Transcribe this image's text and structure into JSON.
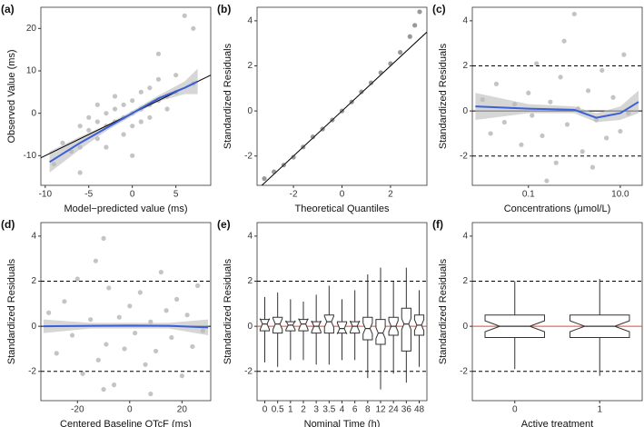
{
  "chart_data": [
    {
      "type": "scatter",
      "title": "(a)",
      "xlabel": "Model−predicted value (ms)",
      "ylabel": "Observed Value (ms)",
      "xlim": [
        -10.5,
        9
      ],
      "ylim": [
        -17,
        25
      ],
      "xticks": [
        -10,
        -5,
        0,
        5
      ],
      "yticks": [
        -10,
        0,
        10,
        20
      ],
      "series": [
        {
          "type": "scatter",
          "color": "#555555",
          "alpha": 0.35,
          "x": [
            -9,
            -8,
            -7,
            -6,
            -6,
            -5,
            -5,
            -4,
            -4,
            -4,
            -3,
            -3,
            -3,
            -2,
            -2,
            -2,
            -1,
            -1,
            -1,
            0,
            0,
            0,
            1,
            1,
            1,
            2,
            2,
            2,
            3,
            3,
            4,
            4,
            5,
            5,
            6,
            7,
            7,
            3,
            -6,
            0
          ],
          "values": [
            -12,
            -7,
            -9,
            -3,
            -8,
            -4,
            -1,
            -6,
            -2,
            2,
            -3,
            0,
            -8,
            -2,
            1,
            4,
            -1,
            2,
            -5,
            0,
            3,
            -3,
            1,
            5,
            -2,
            2,
            6,
            -1,
            3,
            8,
            4,
            1,
            5,
            9,
            23,
            7,
            20,
            14,
            -14,
            -10
          ]
        },
        {
          "type": "band",
          "color": "#bbbbbb",
          "x": [
            -9.5,
            -6,
            -3,
            0,
            3,
            6,
            7.5
          ],
          "lower": [
            -14,
            -8.5,
            -4.2,
            -0.6,
            2.8,
            4.5,
            4.5
          ],
          "upper": [
            -9,
            -5.5,
            -2.8,
            0.6,
            4.2,
            7.5,
            10.5
          ]
        },
        {
          "type": "line",
          "color": "#000000",
          "x": [
            -10.5,
            9
          ],
          "values": [
            -10.5,
            9
          ]
        },
        {
          "type": "line",
          "color": "#3a5fd6",
          "x": [
            -9.5,
            -6,
            -3,
            0,
            3,
            6,
            7.5
          ],
          "values": [
            -11.5,
            -7,
            -3.5,
            0,
            3.5,
            6,
            7.5
          ]
        }
      ]
    },
    {
      "type": "scatter",
      "title": "(b)",
      "xlabel": "Theoretical Quantiles",
      "ylabel": "Standardized Residuals",
      "xlim": [
        -3.5,
        3.5
      ],
      "ylim": [
        -3.3,
        4.6
      ],
      "xticks": [
        -2,
        0,
        2
      ],
      "yticks": [
        -2,
        0,
        2,
        4
      ],
      "series": [
        {
          "type": "line",
          "color": "#000000",
          "x": [
            -3.5,
            3.5
          ],
          "values": [
            -3.5,
            3.5
          ]
        },
        {
          "type": "scatter",
          "color": "#333333",
          "alpha": 0.5,
          "x": [
            -3.2,
            -2.8,
            -2.4,
            -2,
            -1.6,
            -1.2,
            -0.8,
            -0.4,
            0,
            0.4,
            0.8,
            1.2,
            1.6,
            2,
            2.4,
            2.8,
            3,
            3.2
          ],
          "values": [
            -3,
            -2.7,
            -2.4,
            -2.05,
            -1.6,
            -1.15,
            -0.8,
            -0.4,
            0,
            0.4,
            0.85,
            1.25,
            1.7,
            2.1,
            2.6,
            3.3,
            3.8,
            4.4
          ]
        }
      ]
    },
    {
      "type": "scatter",
      "title": "(c)",
      "xlabel": "Concentrations (μmol/L)",
      "ylabel": "Standardized Residuals",
      "log_x": true,
      "xlim": [
        0.006,
        30
      ],
      "ylim": [
        -3.3,
        4.6
      ],
      "xticks": [
        0.1,
        {
          "value": 10,
          "label": "10.0"
        }
      ],
      "yticks": [
        -2,
        0,
        2,
        4
      ],
      "hlines": [
        {
          "y": 2,
          "style": "dashed",
          "color": "#000000"
        },
        {
          "y": -2,
          "style": "dashed",
          "color": "#000000"
        },
        {
          "y": 0,
          "style": "solid",
          "color": "#000000"
        }
      ],
      "series": [
        {
          "type": "scatter",
          "color": "#555555",
          "alpha": 0.35,
          "x": [
            0.01,
            0.015,
            0.02,
            0.03,
            0.05,
            0.07,
            0.1,
            0.12,
            0.15,
            0.2,
            0.3,
            0.4,
            0.5,
            0.7,
            1,
            1.2,
            1.5,
            2,
            3,
            4,
            5,
            7,
            10,
            12,
            15,
            0.6,
            2.5,
            0.25
          ],
          "values": [
            0.5,
            -1,
            1.2,
            -0.5,
            0.3,
            -1.5,
            0.8,
            -0.2,
            2.1,
            -1.1,
            0.4,
            -2.3,
            1.5,
            -0.6,
            4.3,
            0.1,
            -1.8,
            0.9,
            -0.4,
            1.8,
            -1.2,
            0.6,
            -0.9,
            2.5,
            -0.1,
            3.1,
            -2.5,
            -3.1
          ]
        },
        {
          "type": "band",
          "color": "#bbbbbb",
          "x": [
            0.007,
            0.1,
            1,
            3,
            10,
            25
          ],
          "lower": [
            -0.4,
            -0.1,
            -0.1,
            -0.5,
            -0.4,
            -0.1
          ],
          "upper": [
            0.8,
            0.3,
            0.2,
            -0.1,
            0.2,
            0.9
          ]
        },
        {
          "type": "line",
          "color": "#3a5fd6",
          "x": [
            0.007,
            0.1,
            1,
            3,
            10,
            25
          ],
          "values": [
            0.2,
            0.1,
            0.05,
            -0.3,
            -0.1,
            0.4
          ]
        }
      ]
    },
    {
      "type": "scatter",
      "title": "(d)",
      "xlabel": "Centered Baseline QTcF (ms)",
      "ylabel": "Standardized Residuals",
      "xlim": [
        -34,
        31
      ],
      "ylim": [
        -3.3,
        4.6
      ],
      "xticks": [
        -20,
        0,
        20
      ],
      "yticks": [
        -2,
        0,
        2,
        4
      ],
      "hlines": [
        {
          "y": 2,
          "style": "dashed",
          "color": "#000000"
        },
        {
          "y": -2,
          "style": "dashed",
          "color": "#000000"
        },
        {
          "y": 0,
          "style": "solid",
          "color": "#000000"
        }
      ],
      "series": [
        {
          "type": "scatter",
          "color": "#555555",
          "alpha": 0.35,
          "x": [
            -31,
            -28,
            -25,
            -22,
            -20,
            -18,
            -15,
            -12,
            -10,
            -9,
            -8,
            -6,
            -4,
            -2,
            0,
            2,
            4,
            6,
            8,
            10,
            12,
            14,
            16,
            18,
            20,
            22,
            24,
            26,
            28,
            -10,
            -13,
            8
          ],
          "values": [
            0.6,
            -1.2,
            1.1,
            -0.4,
            2.1,
            -2.1,
            0.3,
            -1.5,
            3.9,
            -0.8,
            1.7,
            -2.6,
            0.4,
            -1,
            0.9,
            -0.3,
            1.5,
            -1.7,
            0.2,
            -1.1,
            2.4,
            0.7,
            -0.5,
            1.2,
            -2.2,
            0.5,
            -0.9,
            1.8,
            -0.2,
            -2.8,
            2.9,
            -3
          ]
        },
        {
          "type": "band",
          "color": "#bbbbbb",
          "x": [
            -33,
            -15,
            0,
            15,
            30
          ],
          "lower": [
            -0.3,
            -0.1,
            -0.1,
            -0.1,
            -0.4
          ],
          "upper": [
            0.3,
            0.15,
            0.15,
            0.15,
            0.3
          ]
        },
        {
          "type": "line",
          "color": "#3a5fd6",
          "x": [
            -33,
            -15,
            0,
            15,
            30
          ],
          "values": [
            0,
            0.02,
            0.03,
            0.02,
            -0.05
          ]
        }
      ]
    },
    {
      "type": "boxplot",
      "title": "(e)",
      "xlabel": "Nominal Time (h)",
      "ylabel": "Standardized Residuals",
      "ylim": [
        -3.3,
        4.6
      ],
      "yticks": [
        -2,
        0,
        2,
        4
      ],
      "hlines": [
        {
          "y": 2,
          "style": "dashed",
          "color": "#000000"
        },
        {
          "y": -2,
          "style": "dashed",
          "color": "#000000"
        },
        {
          "y": 0,
          "style": "solid",
          "color": "#e8433a"
        }
      ],
      "categories": [
        "0",
        "0.5",
        "1",
        "2",
        "3",
        "3.5",
        "4",
        "6",
        "8",
        "12",
        "24",
        "36",
        "48"
      ],
      "stats": {
        "min": [
          -1.6,
          -1.8,
          -1.5,
          -1.5,
          -1.7,
          -1.7,
          -1.5,
          -1.5,
          -2.3,
          -2.8,
          -2.1,
          -2.5,
          -1.8
        ],
        "q1": [
          -0.2,
          -0.3,
          -0.2,
          -0.2,
          -0.3,
          -0.3,
          -0.3,
          -0.3,
          -0.6,
          -0.8,
          -0.4,
          -1.1,
          -0.4
        ],
        "median": [
          0.1,
          0.1,
          0.05,
          0.1,
          0,
          0.2,
          -0.1,
          0,
          -0.1,
          -0.3,
          0,
          0.1,
          0.05
        ],
        "q3": [
          0.3,
          0.4,
          0.2,
          0.3,
          0.2,
          0.5,
          0.2,
          0.2,
          0.4,
          0.3,
          0.4,
          0.8,
          0.5
        ],
        "max": [
          1.3,
          1.5,
          1.2,
          1.1,
          1.4,
          1.8,
          1.2,
          1.6,
          2.3,
          2.6,
          2,
          2.6,
          1.6
        ]
      }
    },
    {
      "type": "boxplot",
      "title": "(f)",
      "xlabel": "Active treatment",
      "ylabel": "Standardized Residuals",
      "ylim": [
        -3.3,
        4.6
      ],
      "yticks": [
        -2,
        0,
        2,
        4
      ],
      "hlines": [
        {
          "y": 2,
          "style": "dashed",
          "color": "#000000"
        },
        {
          "y": -2,
          "style": "dashed",
          "color": "#000000"
        },
        {
          "y": 0,
          "style": "solid",
          "color": "#e8433a"
        }
      ],
      "categories": [
        "0",
        "1"
      ],
      "stats": {
        "min": [
          -1.9,
          -2.2
        ],
        "q1": [
          -0.5,
          -0.5
        ],
        "median": [
          0,
          0
        ],
        "q3": [
          0.5,
          0.5
        ],
        "max": [
          2,
          2.1
        ]
      }
    }
  ]
}
